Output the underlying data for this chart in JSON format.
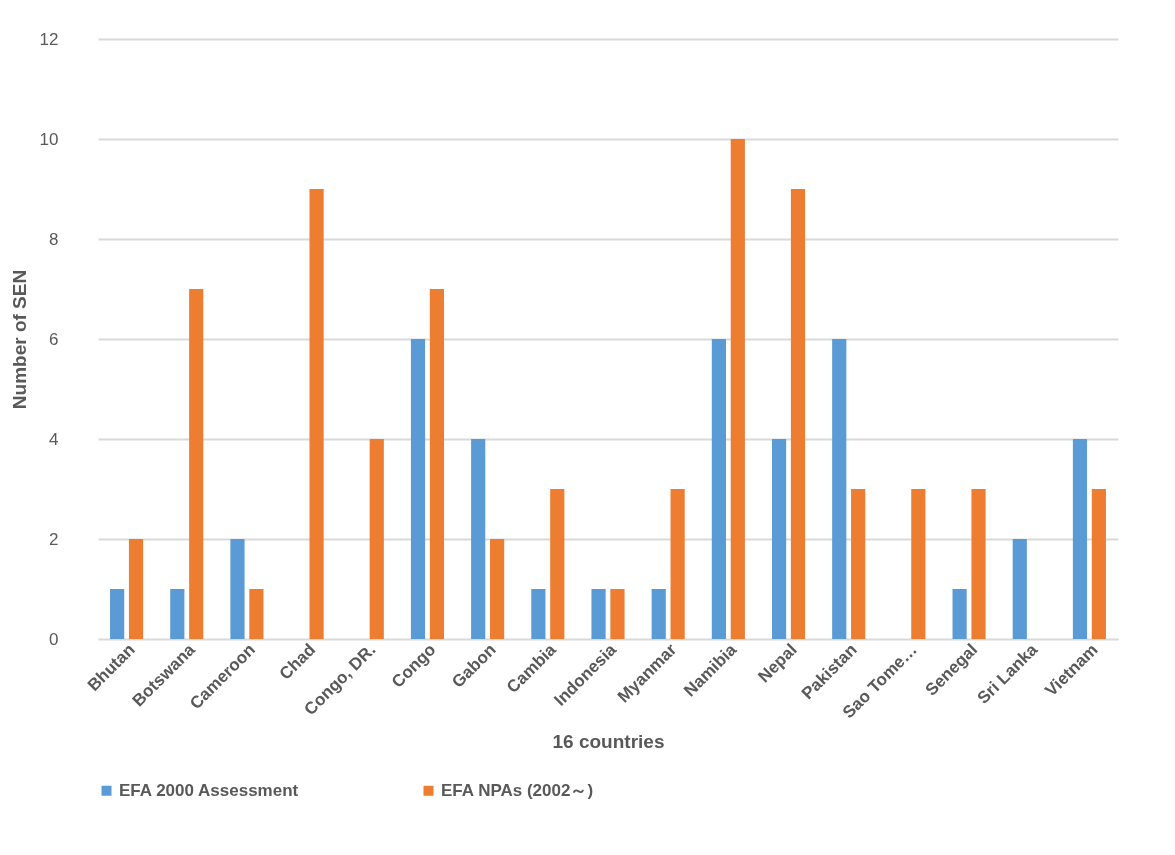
{
  "chart_data": {
    "type": "bar",
    "xlabel": "16 countries",
    "ylabel": "Number of SEN",
    "categories": [
      "Bhutan",
      "Botswana",
      "Cameroon",
      "Chad",
      "Congo, DR.",
      "Congo",
      "Gabon",
      "Cambia",
      "Indonesia",
      "Myanmar",
      "Namibia",
      "Nepal",
      "Pakistan",
      "Sao Tome…",
      "Senegal",
      "Sri Lanka",
      "Vietnam"
    ],
    "series": [
      {
        "name": "EFA 2000 Assessment",
        "color": "#5b9bd5",
        "values": [
          1,
          1,
          2,
          0,
          0,
          6,
          4,
          1,
          1,
          1,
          6,
          4,
          6,
          0,
          1,
          2,
          4
        ]
      },
      {
        "name": "EFA NPAs (2002～)",
        "color": "#ed7d31",
        "values": [
          2,
          7,
          1,
          9,
          4,
          7,
          2,
          3,
          1,
          3,
          10,
          9,
          3,
          3,
          3,
          0,
          3
        ]
      }
    ],
    "ylim": [
      0,
      12
    ],
    "yticks": [
      0,
      2,
      4,
      6,
      8,
      10,
      12
    ],
    "grid": "y",
    "legend": "bottom"
  }
}
